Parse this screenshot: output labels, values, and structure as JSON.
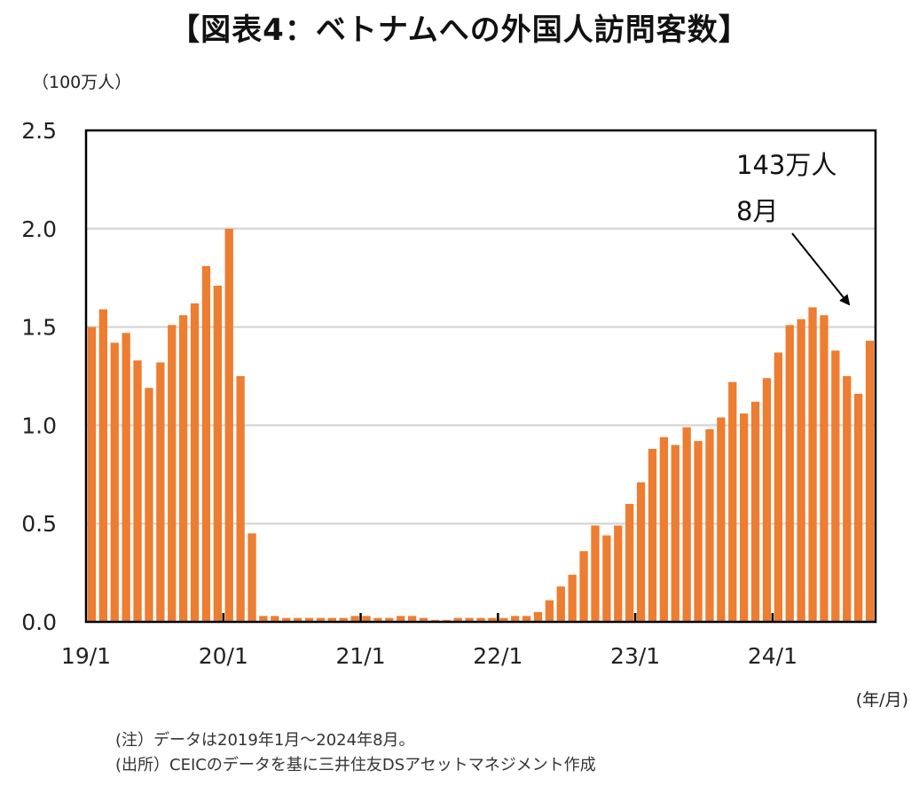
{
  "title": "【図表4：ベトナムへの外国人訪問客数】",
  "notes": {
    "note": "(注）データは2019年1月～2024年8月。",
    "source": "(出所）CEICのデータを基に三井住友DSアセットマネジメント作成"
  },
  "colors": {
    "bar": "#ED7D31",
    "grid": "#D9D9D9",
    "axis": "#000000"
  },
  "chart_data": {
    "type": "bar",
    "ylabel": "（100万人）",
    "xlabel": "(年/月)",
    "ylim": [
      0,
      2.5
    ],
    "yticks": [
      "0.0",
      "0.5",
      "1.0",
      "1.5",
      "2.0",
      "2.5"
    ],
    "xtick_labels": [
      "19/1",
      "20/1",
      "21/1",
      "22/1",
      "23/1",
      "24/1"
    ],
    "grid": true,
    "series": [
      {
        "values": [
          1.5,
          1.59,
          1.42,
          1.47,
          1.33,
          1.19,
          1.32,
          1.51,
          1.56,
          1.62,
          1.81,
          1.71,
          2.0,
          1.25,
          0.45,
          0.03,
          0.03,
          0.02,
          0.02,
          0.02,
          0.02,
          0.02,
          0.02,
          0.03,
          0.03,
          0.02,
          0.02,
          0.03,
          0.03,
          0.02,
          0.01,
          0.01,
          0.02,
          0.02,
          0.02,
          0.02,
          0.02,
          0.03,
          0.03,
          0.05,
          0.11,
          0.18,
          0.24,
          0.36,
          0.49,
          0.44,
          0.49,
          0.6,
          0.71,
          0.88,
          0.94,
          0.9,
          0.99,
          0.92,
          0.98,
          1.04,
          1.22,
          1.06,
          1.12,
          1.24,
          1.37,
          1.51,
          1.54,
          1.6,
          1.56,
          1.38,
          1.25,
          1.16,
          1.43
        ]
      }
    ],
    "annotation": {
      "value": "143万人",
      "month": "8月"
    }
  }
}
